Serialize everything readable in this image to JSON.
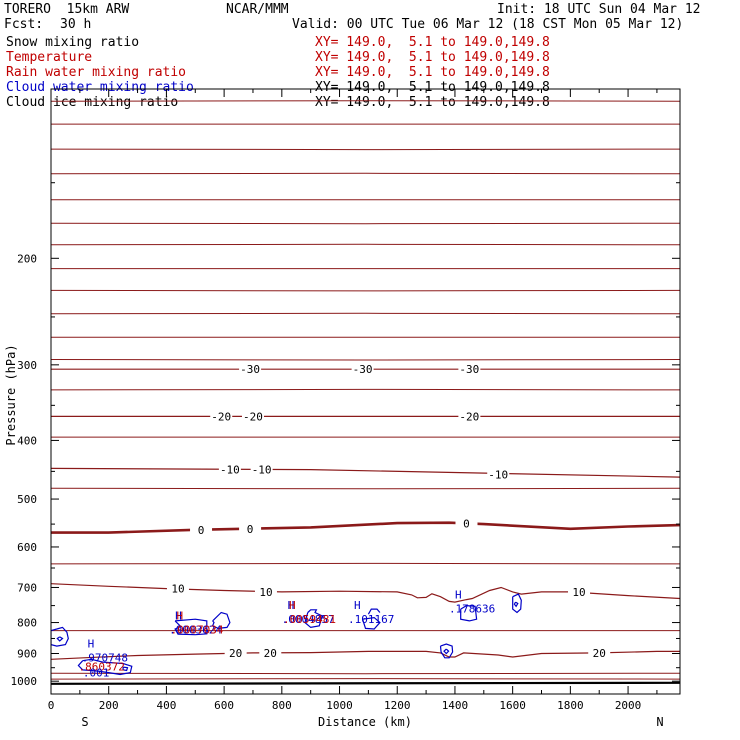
{
  "header": {
    "model": "TORERO  15km ARW",
    "center": "NCAR/MMM",
    "init": "Init: 18 UTC Sun 04 Mar 12",
    "fcst_label": "Fcst:",
    "fcst_value": "30 h",
    "valid": "Valid: 00 UTC Tue 06 Mar 12 (18 CST Mon 05 Mar 12)"
  },
  "fields": [
    {
      "name": "Snow mixing ratio",
      "xsec": "XY= 149.0,  5.1 to 149.0,149.8",
      "color": "#000000"
    },
    {
      "name": "Temperature",
      "xsec": "XY= 149.0,  5.1 to 149.0,149.8",
      "color": "#c00000"
    },
    {
      "name": "Rain water mixing ratio",
      "xsec": "XY= 149.0,  5.1 to 149.0,149.8",
      "color": "#c00000"
    },
    {
      "name": "Cloud water mixing ratio",
      "xsec": "XY= 149.0,  5.1 to 149.0,149.8",
      "color": "#0000c8"
    },
    {
      "name": "Cloud ice mixing ratio",
      "xsec": "XY= 149.0,  5.1 to 149.0,149.8",
      "color": "#000000"
    }
  ],
  "chart_data": {
    "type": "contour",
    "xlabel": "Distance (km)",
    "ylabel": "Pressure (hPa)",
    "xlim": [
      0,
      2180
    ],
    "ylim": [
      1050,
      105
    ],
    "y_scale": "log",
    "x_ticks": [
      0,
      200,
      400,
      600,
      800,
      1000,
      1200,
      1400,
      1600,
      1800,
      2000
    ],
    "y_ticks": [
      200,
      300,
      400,
      500,
      600,
      700,
      800,
      900,
      1000
    ],
    "endpoint_left": "S",
    "endpoint_right": "N",
    "colors": {
      "temperature": "#8b1a1a",
      "cloud_water": "#0000c8",
      "rain_water": "#c00000",
      "ground": "#000000"
    },
    "isotherms": [
      {
        "label": "-30",
        "p": [
          [
            0,
            305
          ],
          [
            2180,
            305
          ]
        ],
        "labels_at": [
          [
            690,
            305
          ],
          [
            1080,
            305
          ],
          [
            1450,
            305
          ]
        ]
      },
      {
        "label": "-20",
        "p": [
          [
            0,
            365
          ],
          [
            2180,
            365
          ]
        ],
        "labels_at": [
          [
            590,
            365
          ],
          [
            700,
            365
          ],
          [
            1450,
            365
          ]
        ]
      },
      {
        "label": "-10",
        "p": [
          [
            0,
            445
          ],
          [
            900,
            447
          ],
          [
            2180,
            460
          ]
        ],
        "labels_at": [
          [
            620,
            447
          ],
          [
            730,
            447
          ],
          [
            1550,
            455
          ]
        ]
      },
      {
        "label": "0",
        "p": [
          [
            0,
            568
          ],
          [
            200,
            568
          ],
          [
            500,
            562
          ],
          [
            900,
            557
          ],
          [
            1200,
            548
          ],
          [
            1380,
            547
          ],
          [
            1500,
            550
          ],
          [
            1800,
            560
          ],
          [
            2000,
            555
          ],
          [
            2180,
            552
          ]
        ],
        "labels_at": [
          [
            520,
            562
          ],
          [
            690,
            560
          ],
          [
            1440,
            549
          ]
        ]
      },
      {
        "label": "10",
        "p": [
          [
            0,
            690
          ],
          [
            200,
            697
          ],
          [
            400,
            703
          ],
          [
            600,
            708
          ],
          [
            800,
            712
          ],
          [
            1000,
            710
          ],
          [
            1200,
            712
          ],
          [
            1250,
            720
          ],
          [
            1270,
            728
          ],
          [
            1300,
            727
          ],
          [
            1320,
            717
          ],
          [
            1350,
            725
          ],
          [
            1380,
            738
          ],
          [
            1400,
            740
          ],
          [
            1440,
            733
          ],
          [
            1460,
            730
          ],
          [
            1520,
            708
          ],
          [
            1560,
            700
          ],
          [
            1600,
            712
          ],
          [
            1630,
            718
          ],
          [
            1700,
            712
          ],
          [
            1800,
            712
          ],
          [
            2000,
            722
          ],
          [
            2180,
            730
          ]
        ],
        "labels_at": [
          [
            440,
            703
          ],
          [
            745,
            712
          ],
          [
            1830,
            712
          ]
        ]
      },
      {
        "label": "20",
        "p": [
          [
            0,
            920
          ],
          [
            150,
            913
          ],
          [
            300,
            907
          ],
          [
            500,
            902
          ],
          [
            700,
            898
          ],
          [
            900,
            897
          ],
          [
            1100,
            893
          ],
          [
            1300,
            893
          ],
          [
            1350,
            898
          ],
          [
            1380,
            912
          ],
          [
            1400,
            912
          ],
          [
            1430,
            898
          ],
          [
            1550,
            905
          ],
          [
            1600,
            912
          ],
          [
            1700,
            900
          ],
          [
            1900,
            898
          ],
          [
            2100,
            893
          ],
          [
            2180,
            893
          ]
        ],
        "labels_at": [
          [
            640,
            898
          ],
          [
            760,
            898
          ],
          [
            1900,
            898
          ]
        ]
      }
    ],
    "gridlines_p": [
      110,
      120,
      132,
      145,
      160,
      175,
      190,
      208,
      226,
      247,
      270,
      294,
      330,
      395,
      480,
      640,
      825,
      970,
      992
    ],
    "ground_p": 1010,
    "extrema": [
      {
        "type": "H",
        "x": 127,
        "p": 907,
        "label": ".970748",
        "color": "#0000c8"
      },
      {
        "type": "H",
        "x": 430,
        "p": 815,
        "label": ".0003624",
        "color": "#0000c8"
      },
      {
        "type": "H",
        "x": 435,
        "p": 815,
        "label": ".0007034",
        "color": "#c00000"
      },
      {
        "type": "H",
        "x": 820,
        "p": 783,
        "label": ".0004857",
        "color": "#0000c8"
      },
      {
        "type": "H",
        "x": 825,
        "p": 783,
        "label": ".0059481",
        "color": "#c00000"
      },
      {
        "type": "H",
        "x": 1050,
        "p": 783,
        "label": ".101167",
        "color": "#0000c8"
      },
      {
        "type": "H",
        "x": 1400,
        "p": 752,
        "label": ".178636",
        "color": "#0000c8"
      }
    ],
    "annotations": [
      {
        "x": 130,
        "p": 945,
        "label": ".860372",
        "color": "#c00000"
      },
      {
        "x": 145,
        "p": 968,
        "label": ".001",
        "color": "#0000c8"
      }
    ],
    "cloud_water_contours": [
      [
        [
          20,
          820
        ],
        [
          40,
          815
        ],
        [
          55,
          830
        ],
        [
          60,
          850
        ],
        [
          50,
          870
        ],
        [
          20,
          875
        ],
        [
          0,
          870
        ],
        [
          0,
          825
        ],
        [
          20,
          820
        ]
      ],
      [
        [
          30,
          845
        ],
        [
          40,
          850
        ],
        [
          30,
          858
        ],
        [
          22,
          850
        ],
        [
          30,
          845
        ]
      ],
      [
        [
          430,
          795
        ],
        [
          500,
          790
        ],
        [
          540,
          795
        ],
        [
          540,
          835
        ],
        [
          500,
          838
        ],
        [
          440,
          836
        ],
        [
          430,
          820
        ],
        [
          450,
          812
        ],
        [
          430,
          795
        ]
      ],
      [
        [
          560,
          795
        ],
        [
          590,
          770
        ],
        [
          610,
          775
        ],
        [
          620,
          800
        ],
        [
          610,
          815
        ],
        [
          580,
          818
        ],
        [
          560,
          810
        ],
        [
          565,
          800
        ],
        [
          560,
          795
        ]
      ],
      [
        [
          890,
          770
        ],
        [
          900,
          762
        ],
        [
          920,
          762
        ],
        [
          915,
          770
        ],
        [
          940,
          780
        ],
        [
          930,
          810
        ],
        [
          900,
          815
        ],
        [
          880,
          800
        ],
        [
          890,
          770
        ]
      ],
      [
        [
          1100,
          775
        ],
        [
          1110,
          760
        ],
        [
          1130,
          760
        ],
        [
          1140,
          770
        ]
      ],
      [
        [
          1080,
          790
        ],
        [
          1120,
          785
        ],
        [
          1140,
          800
        ],
        [
          1120,
          820
        ],
        [
          1090,
          818
        ],
        [
          1080,
          790
        ]
      ],
      [
        [
          1350,
          875
        ],
        [
          1370,
          868
        ],
        [
          1390,
          875
        ],
        [
          1392,
          895
        ],
        [
          1380,
          915
        ],
        [
          1365,
          915
        ],
        [
          1352,
          895
        ],
        [
          1350,
          875
        ]
      ],
      [
        [
          1370,
          885
        ],
        [
          1378,
          892
        ],
        [
          1370,
          900
        ],
        [
          1362,
          892
        ],
        [
          1370,
          885
        ]
      ],
      [
        [
          1420,
          760
        ],
        [
          1440,
          750
        ],
        [
          1470,
          752
        ],
        [
          1475,
          790
        ],
        [
          1450,
          795
        ],
        [
          1420,
          790
        ],
        [
          1420,
          760
        ]
      ],
      [
        [
          1600,
          725
        ],
        [
          1620,
          718
        ],
        [
          1630,
          735
        ],
        [
          1628,
          760
        ],
        [
          1615,
          770
        ],
        [
          1600,
          760
        ],
        [
          1600,
          725
        ]
      ],
      [
        [
          1610,
          740
        ],
        [
          1618,
          744
        ],
        [
          1612,
          752
        ],
        [
          1606,
          746
        ],
        [
          1610,
          740
        ]
      ],
      [
        [
          110,
          925
        ],
        [
          140,
          920
        ],
        [
          180,
          930
        ],
        [
          250,
          935
        ],
        [
          280,
          945
        ],
        [
          275,
          968
        ],
        [
          240,
          975
        ],
        [
          200,
          968
        ],
        [
          160,
          962
        ],
        [
          110,
          958
        ],
        [
          95,
          942
        ],
        [
          110,
          925
        ]
      ],
      [
        [
          250,
          948
        ],
        [
          265,
          950
        ],
        [
          262,
          960
        ],
        [
          250,
          958
        ],
        [
          250,
          948
        ]
      ]
    ]
  }
}
